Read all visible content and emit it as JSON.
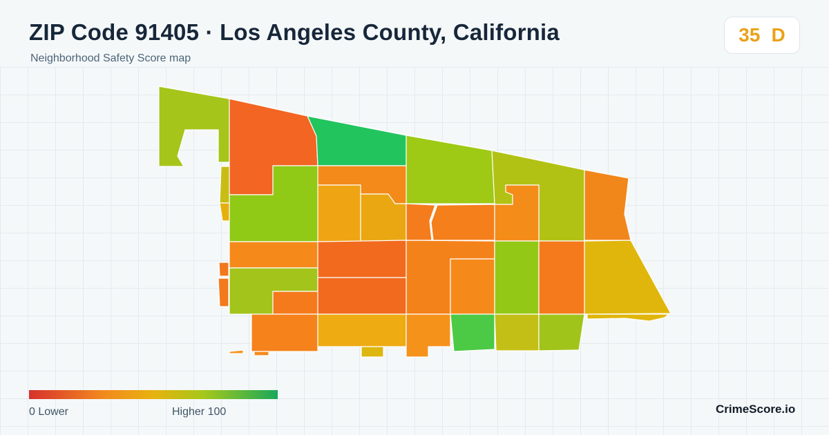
{
  "header": {
    "title": "ZIP Code 91405 · Los Angeles County, California",
    "subtitle": "Neighborhood Safety Score map"
  },
  "score_badge": {
    "score": "35",
    "grade": "D",
    "color": "#e9a21a"
  },
  "legend": {
    "min_label": "0  Lower",
    "max_label": "Higher  100",
    "colors": [
      "#d7312d",
      "#f28a1e",
      "#e8b20f",
      "#a6c81a",
      "#1aa85a"
    ]
  },
  "brand": "CrimeScore.io",
  "map": {
    "background": "#f5f8f9",
    "border_color": "#ffffff"
  }
}
